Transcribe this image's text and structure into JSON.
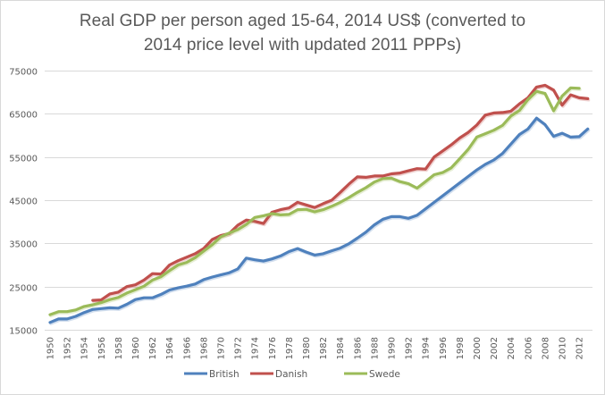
{
  "chart_data": {
    "type": "line",
    "title_line1": "Real GDP per person aged 15-64, 2014 US$ (converted to",
    "title_line2": "2014 price level with updated  2011 PPPs)",
    "xlabel": "",
    "ylabel": "",
    "ylim": [
      15000,
      75000
    ],
    "yticks": [
      "15000",
      "25000",
      "35000",
      "45000",
      "55000",
      "65000",
      "75000"
    ],
    "ytick_values": [
      15000,
      25000,
      35000,
      45000,
      55000,
      65000,
      75000
    ],
    "grid": true,
    "legend_position": "bottom",
    "x": [
      1950,
      1951,
      1952,
      1953,
      1954,
      1955,
      1956,
      1957,
      1958,
      1959,
      1960,
      1961,
      1962,
      1963,
      1964,
      1965,
      1966,
      1967,
      1968,
      1969,
      1970,
      1971,
      1972,
      1973,
      1974,
      1975,
      1976,
      1977,
      1978,
      1979,
      1980,
      1981,
      1982,
      1983,
      1984,
      1985,
      1986,
      1987,
      1988,
      1989,
      1990,
      1991,
      1992,
      1993,
      1994,
      1995,
      1996,
      1997,
      1998,
      1999,
      2000,
      2001,
      2002,
      2003,
      2004,
      2005,
      2006,
      2007,
      2008,
      2009,
      2010,
      2011,
      2012,
      2013
    ],
    "xticks": [
      "1950",
      "1952",
      "1954",
      "1956",
      "1958",
      "1960",
      "1962",
      "1964",
      "1966",
      "1968",
      "1970",
      "1972",
      "1974",
      "1976",
      "1978",
      "1980",
      "1982",
      "1984",
      "1986",
      "1988",
      "1990",
      "1992",
      "1994",
      "1996",
      "1998",
      "2000",
      "2002",
      "2004",
      "2006",
      "2008",
      "2010",
      "2012"
    ],
    "series": [
      {
        "name": "British",
        "color": "#4f81bd",
        "values": [
          16700,
          17500,
          17500,
          18100,
          19000,
          19700,
          19900,
          20100,
          20000,
          20900,
          22000,
          22400,
          22400,
          23200,
          24200,
          24700,
          25100,
          25600,
          26600,
          27200,
          27700,
          28200,
          29100,
          31600,
          31200,
          30900,
          31400,
          32100,
          33100,
          33800,
          33000,
          32300,
          32600,
          33300,
          33900,
          34900,
          36200,
          37600,
          39300,
          40600,
          41200,
          41200,
          40800,
          41500,
          43000,
          44500,
          46000,
          47500,
          49000,
          50500,
          52000,
          53300,
          54300,
          55800,
          58000,
          60200,
          61500,
          64000,
          62500,
          59800,
          60500,
          59600,
          59700,
          61500
        ]
      },
      {
        "name": "Danish",
        "color": "#c0504d",
        "values": [
          null,
          null,
          null,
          null,
          null,
          21800,
          21900,
          23300,
          23700,
          25000,
          25400,
          26500,
          28000,
          27900,
          30000,
          31000,
          31800,
          32600,
          33800,
          35900,
          36800,
          37300,
          39200,
          40400,
          40100,
          39600,
          42200,
          42800,
          43200,
          44500,
          43900,
          43300,
          44200,
          45000,
          46800,
          48700,
          50400,
          50300,
          50600,
          50600,
          51100,
          51300,
          51800,
          52300,
          52200,
          55000,
          56400,
          57800,
          59400,
          60700,
          62400,
          64700,
          65200,
          65300,
          65600,
          67300,
          68700,
          71200,
          71600,
          70500,
          67000,
          69400,
          68700,
          68500
        ]
      },
      {
        "name": "Swede",
        "color": "#9bbb59",
        "values": [
          18500,
          19200,
          19200,
          19600,
          20400,
          20800,
          21300,
          22000,
          22500,
          23500,
          24300,
          25100,
          26500,
          27300,
          28700,
          30000,
          30600,
          31700,
          33200,
          34700,
          36500,
          37400,
          38200,
          39400,
          41000,
          41400,
          41900,
          41600,
          41700,
          42800,
          42900,
          42300,
          42800,
          43600,
          44500,
          45600,
          46800,
          47900,
          49200,
          50000,
          50100,
          49300,
          48800,
          47800,
          49300,
          50900,
          51400,
          52500,
          54600,
          56800,
          59600,
          60400,
          61200,
          62300,
          64500,
          65800,
          68300,
          70200,
          69700,
          65700,
          69100,
          71000,
          70900,
          null
        ]
      }
    ]
  }
}
